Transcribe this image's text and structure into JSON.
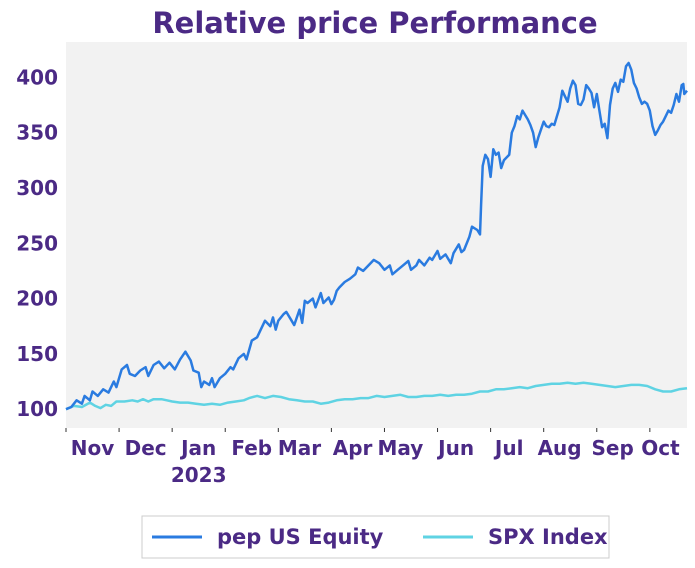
{
  "chart_data": {
    "type": "line",
    "title": "Relative price Performance",
    "xlabel": "",
    "ylabel": "",
    "ylim": [
      83,
      432
    ],
    "y_ticks": [
      100,
      150,
      200,
      250,
      300,
      350,
      400
    ],
    "x_tick_labels": [
      {
        "label": "Nov",
        "t": 0.5
      },
      {
        "label": "Dec",
        "t": 1.5
      },
      {
        "label": "Jan",
        "t": 2.5,
        "sub": "2023"
      },
      {
        "label": "Feb",
        "t": 3.5
      },
      {
        "label": "Mar",
        "t": 4.4
      },
      {
        "label": "Apr",
        "t": 5.4
      },
      {
        "label": "May",
        "t": 6.3
      },
      {
        "label": "Jun",
        "t": 7.35
      },
      {
        "label": "Jul",
        "t": 8.35
      },
      {
        "label": "Aug",
        "t": 9.3
      },
      {
        "label": "Sep",
        "t": 10.3
      },
      {
        "label": "Oct",
        "t": 11.2
      }
    ],
    "x_range": [
      0,
      11.7
    ],
    "legend": {
      "position": "bottom-center"
    },
    "grid": false,
    "background": "#f2f2f2",
    "title_color": "#4b2a85",
    "tick_color": "#4b2a85",
    "series": [
      {
        "name": "pep US Equity",
        "color": "#2a7be0",
        "points": [
          [
            0.0,
            100
          ],
          [
            0.1,
            102
          ],
          [
            0.2,
            108
          ],
          [
            0.3,
            105
          ],
          [
            0.35,
            112
          ],
          [
            0.45,
            108
          ],
          [
            0.5,
            116
          ],
          [
            0.6,
            112
          ],
          [
            0.7,
            118
          ],
          [
            0.8,
            115
          ],
          [
            0.9,
            125
          ],
          [
            0.95,
            120
          ],
          [
            1.05,
            136
          ],
          [
            1.15,
            140
          ],
          [
            1.2,
            132
          ],
          [
            1.3,
            130
          ],
          [
            1.4,
            135
          ],
          [
            1.5,
            138
          ],
          [
            1.55,
            130
          ],
          [
            1.65,
            140
          ],
          [
            1.75,
            143
          ],
          [
            1.85,
            137
          ],
          [
            1.95,
            142
          ],
          [
            2.05,
            136
          ],
          [
            2.15,
            145
          ],
          [
            2.25,
            152
          ],
          [
            2.35,
            144
          ],
          [
            2.4,
            135
          ],
          [
            2.5,
            133
          ],
          [
            2.55,
            120
          ],
          [
            2.6,
            125
          ],
          [
            2.7,
            122
          ],
          [
            2.75,
            128
          ],
          [
            2.8,
            120
          ],
          [
            2.9,
            128
          ],
          [
            3.0,
            132
          ],
          [
            3.1,
            138
          ],
          [
            3.15,
            136
          ],
          [
            3.25,
            146
          ],
          [
            3.35,
            150
          ],
          [
            3.4,
            145
          ],
          [
            3.5,
            162
          ],
          [
            3.6,
            165
          ],
          [
            3.65,
            170
          ],
          [
            3.75,
            180
          ],
          [
            3.85,
            175
          ],
          [
            3.9,
            183
          ],
          [
            3.95,
            172
          ],
          [
            4.0,
            180
          ],
          [
            4.1,
            186
          ],
          [
            4.15,
            188
          ],
          [
            4.25,
            180
          ],
          [
            4.3,
            176
          ],
          [
            4.4,
            190
          ],
          [
            4.45,
            178
          ],
          [
            4.5,
            198
          ],
          [
            4.55,
            196
          ],
          [
            4.65,
            200
          ],
          [
            4.7,
            192
          ],
          [
            4.8,
            205
          ],
          [
            4.85,
            196
          ],
          [
            4.95,
            201
          ],
          [
            5.0,
            195
          ],
          [
            5.05,
            199
          ],
          [
            5.1,
            207
          ],
          [
            5.15,
            210
          ],
          [
            5.25,
            215
          ],
          [
            5.35,
            218
          ],
          [
            5.45,
            222
          ],
          [
            5.5,
            228
          ],
          [
            5.6,
            225
          ],
          [
            5.7,
            230
          ],
          [
            5.8,
            235
          ],
          [
            5.9,
            232
          ],
          [
            6.0,
            226
          ],
          [
            6.1,
            230
          ],
          [
            6.15,
            222
          ],
          [
            6.25,
            226
          ],
          [
            6.35,
            230
          ],
          [
            6.45,
            234
          ],
          [
            6.5,
            226
          ],
          [
            6.6,
            230
          ],
          [
            6.65,
            235
          ],
          [
            6.75,
            230
          ],
          [
            6.85,
            237
          ],
          [
            6.9,
            235
          ],
          [
            7.0,
            243
          ],
          [
            7.05,
            236
          ],
          [
            7.15,
            240
          ],
          [
            7.25,
            232
          ],
          [
            7.3,
            241
          ],
          [
            7.4,
            249
          ],
          [
            7.45,
            242
          ],
          [
            7.5,
            244
          ],
          [
            7.6,
            256
          ],
          [
            7.65,
            265
          ],
          [
            7.75,
            262
          ],
          [
            7.8,
            258
          ],
          [
            7.82,
            285
          ],
          [
            7.85,
            320
          ],
          [
            7.9,
            330
          ],
          [
            7.95,
            326
          ],
          [
            8.0,
            310
          ],
          [
            8.05,
            335
          ],
          [
            8.1,
            330
          ],
          [
            8.15,
            332
          ],
          [
            8.2,
            318
          ],
          [
            8.25,
            325
          ],
          [
            8.35,
            330
          ],
          [
            8.4,
            350
          ],
          [
            8.45,
            356
          ],
          [
            8.5,
            365
          ],
          [
            8.55,
            362
          ],
          [
            8.6,
            370
          ],
          [
            8.7,
            362
          ],
          [
            8.75,
            357
          ],
          [
            8.8,
            350
          ],
          [
            8.85,
            337
          ],
          [
            8.9,
            346
          ],
          [
            9.0,
            360
          ],
          [
            9.05,
            356
          ],
          [
            9.1,
            355
          ],
          [
            9.15,
            358
          ],
          [
            9.2,
            357
          ],
          [
            9.3,
            373
          ],
          [
            9.35,
            388
          ],
          [
            9.4,
            383
          ],
          [
            9.45,
            378
          ],
          [
            9.5,
            390
          ],
          [
            9.55,
            397
          ],
          [
            9.6,
            393
          ],
          [
            9.65,
            376
          ],
          [
            9.7,
            375
          ],
          [
            9.75,
            380
          ],
          [
            9.8,
            393
          ],
          [
            9.85,
            390
          ],
          [
            9.9,
            386
          ],
          [
            9.95,
            373
          ],
          [
            10.0,
            385
          ],
          [
            10.05,
            370
          ],
          [
            10.1,
            355
          ],
          [
            10.15,
            358
          ],
          [
            10.2,
            345
          ],
          [
            10.25,
            375
          ],
          [
            10.3,
            390
          ],
          [
            10.35,
            395
          ],
          [
            10.4,
            387
          ],
          [
            10.45,
            398
          ],
          [
            10.5,
            396
          ],
          [
            10.55,
            410
          ],
          [
            10.6,
            413
          ],
          [
            10.65,
            407
          ],
          [
            10.7,
            395
          ],
          [
            10.75,
            390
          ],
          [
            10.8,
            382
          ],
          [
            10.85,
            376
          ],
          [
            10.9,
            378
          ],
          [
            10.95,
            376
          ],
          [
            11.0,
            370
          ],
          [
            11.05,
            356
          ],
          [
            11.1,
            348
          ],
          [
            11.15,
            352
          ],
          [
            11.2,
            357
          ],
          [
            11.25,
            360
          ],
          [
            11.3,
            365
          ],
          [
            11.35,
            370
          ],
          [
            11.4,
            368
          ],
          [
            11.45,
            375
          ],
          [
            11.5,
            385
          ],
          [
            11.55,
            378
          ],
          [
            11.6,
            393
          ],
          [
            11.63,
            394
          ],
          [
            11.65,
            385
          ],
          [
            11.7,
            388
          ]
        ]
      },
      {
        "name": "SPX Index",
        "color": "#5fd3e3",
        "points": [
          [
            0.0,
            100
          ],
          [
            0.15,
            103
          ],
          [
            0.3,
            102
          ],
          [
            0.45,
            106
          ],
          [
            0.55,
            103
          ],
          [
            0.65,
            101
          ],
          [
            0.75,
            104
          ],
          [
            0.85,
            103
          ],
          [
            0.95,
            107
          ],
          [
            1.1,
            107
          ],
          [
            1.25,
            108
          ],
          [
            1.35,
            107
          ],
          [
            1.45,
            109
          ],
          [
            1.55,
            107
          ],
          [
            1.65,
            109
          ],
          [
            1.8,
            109
          ],
          [
            1.9,
            108
          ],
          [
            2.0,
            107
          ],
          [
            2.15,
            106
          ],
          [
            2.3,
            106
          ],
          [
            2.45,
            105
          ],
          [
            2.6,
            104
          ],
          [
            2.75,
            105
          ],
          [
            2.9,
            104
          ],
          [
            3.05,
            106
          ],
          [
            3.2,
            107
          ],
          [
            3.35,
            108
          ],
          [
            3.45,
            110
          ],
          [
            3.6,
            112
          ],
          [
            3.75,
            110
          ],
          [
            3.9,
            112
          ],
          [
            4.05,
            111
          ],
          [
            4.2,
            109
          ],
          [
            4.35,
            108
          ],
          [
            4.5,
            107
          ],
          [
            4.65,
            107
          ],
          [
            4.8,
            105
          ],
          [
            4.95,
            106
          ],
          [
            5.1,
            108
          ],
          [
            5.25,
            109
          ],
          [
            5.4,
            109
          ],
          [
            5.55,
            110
          ],
          [
            5.7,
            110
          ],
          [
            5.85,
            112
          ],
          [
            6.0,
            111
          ],
          [
            6.15,
            112
          ],
          [
            6.3,
            113
          ],
          [
            6.45,
            111
          ],
          [
            6.6,
            111
          ],
          [
            6.75,
            112
          ],
          [
            6.9,
            112
          ],
          [
            7.05,
            113
          ],
          [
            7.2,
            112
          ],
          [
            7.35,
            113
          ],
          [
            7.5,
            113
          ],
          [
            7.65,
            114
          ],
          [
            7.8,
            116
          ],
          [
            7.95,
            116
          ],
          [
            8.1,
            118
          ],
          [
            8.25,
            118
          ],
          [
            8.4,
            119
          ],
          [
            8.55,
            120
          ],
          [
            8.7,
            119
          ],
          [
            8.85,
            121
          ],
          [
            9.0,
            122
          ],
          [
            9.15,
            123
          ],
          [
            9.3,
            123
          ],
          [
            9.45,
            124
          ],
          [
            9.6,
            123
          ],
          [
            9.75,
            124
          ],
          [
            9.9,
            123
          ],
          [
            10.05,
            122
          ],
          [
            10.2,
            121
          ],
          [
            10.35,
            120
          ],
          [
            10.5,
            121
          ],
          [
            10.65,
            122
          ],
          [
            10.8,
            122
          ],
          [
            10.95,
            121
          ],
          [
            11.1,
            118
          ],
          [
            11.25,
            116
          ],
          [
            11.4,
            116
          ],
          [
            11.55,
            118
          ],
          [
            11.7,
            119
          ]
        ]
      }
    ]
  }
}
